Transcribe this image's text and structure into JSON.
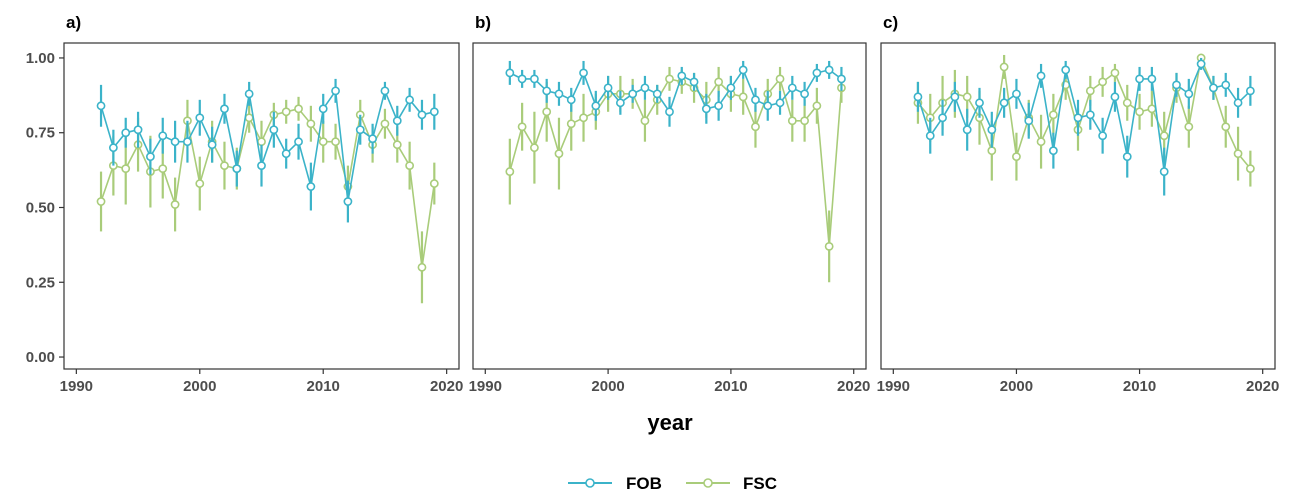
{
  "colors": {
    "FOB": "#3bb3c9",
    "FSC": "#a9cc7a"
  },
  "xlabel": "year",
  "legend": {
    "position": "bottom",
    "items": [
      "FOB",
      "FSC"
    ]
  },
  "chart_data": [
    {
      "panel": "a)",
      "type": "line",
      "x_ticks": [
        "1990",
        "2000",
        "2010",
        "2020"
      ],
      "y_ticks": [
        "0.00",
        "0.25",
        "0.50",
        "0.75",
        "1.00"
      ],
      "xlim": [
        1989,
        2021
      ],
      "ylim": [
        -0.04,
        1.05
      ],
      "grid": false,
      "x": [
        1992,
        1993,
        1994,
        1995,
        1996,
        1997,
        1998,
        1999,
        2000,
        2001,
        2002,
        2003,
        2004,
        2005,
        2006,
        2007,
        2008,
        2009,
        2010,
        2011,
        2012,
        2013,
        2014,
        2015,
        2016,
        2017,
        2018,
        2019
      ],
      "series": [
        {
          "name": "FOB",
          "values": [
            0.84,
            0.7,
            0.75,
            0.76,
            0.67,
            0.74,
            0.72,
            0.72,
            0.8,
            0.71,
            0.83,
            0.63,
            0.88,
            0.64,
            0.76,
            0.68,
            0.72,
            0.57,
            0.83,
            0.89,
            0.52,
            0.76,
            0.73,
            0.89,
            0.79,
            0.86,
            0.81,
            0.82
          ],
          "err": [
            0.07,
            0.06,
            0.05,
            0.06,
            0.06,
            0.06,
            0.07,
            0.07,
            0.06,
            0.06,
            0.05,
            0.06,
            0.04,
            0.07,
            0.06,
            0.05,
            0.06,
            0.08,
            0.05,
            0.04,
            0.07,
            0.05,
            0.05,
            0.03,
            0.05,
            0.04,
            0.05,
            0.06
          ]
        },
        {
          "name": "FSC",
          "values": [
            0.52,
            0.64,
            0.63,
            0.71,
            0.62,
            0.63,
            0.51,
            0.79,
            0.58,
            0.72,
            0.64,
            0.63,
            0.8,
            0.72,
            0.81,
            0.82,
            0.83,
            0.78,
            0.72,
            0.72,
            0.57,
            0.81,
            0.71,
            0.78,
            0.71,
            0.64,
            0.3,
            0.58
          ],
          "err": [
            0.1,
            0.1,
            0.12,
            0.09,
            0.12,
            0.1,
            0.09,
            0.07,
            0.09,
            0.07,
            0.08,
            0.07,
            0.05,
            0.07,
            0.04,
            0.04,
            0.04,
            0.06,
            0.07,
            0.06,
            0.07,
            0.05,
            0.06,
            0.05,
            0.06,
            0.08,
            0.12,
            0.07
          ]
        }
      ]
    },
    {
      "panel": "b)",
      "type": "line",
      "x_ticks": [
        "1990",
        "2000",
        "2010",
        "2020"
      ],
      "xlim": [
        1989,
        2021
      ],
      "ylim": [
        -0.04,
        1.05
      ],
      "grid": false,
      "x": [
        1992,
        1993,
        1994,
        1995,
        1996,
        1997,
        1998,
        1999,
        2000,
        2001,
        2002,
        2003,
        2004,
        2005,
        2006,
        2007,
        2008,
        2009,
        2010,
        2011,
        2012,
        2013,
        2014,
        2015,
        2016,
        2017,
        2018,
        2019
      ],
      "series": [
        {
          "name": "FOB",
          "values": [
            0.95,
            0.93,
            0.93,
            0.89,
            0.88,
            0.86,
            0.95,
            0.84,
            0.9,
            0.85,
            0.88,
            0.9,
            0.88,
            0.82,
            0.94,
            0.92,
            0.83,
            0.84,
            0.9,
            0.96,
            0.86,
            0.84,
            0.85,
            0.9,
            0.88,
            0.95,
            0.96,
            0.93
          ],
          "err": [
            0.04,
            0.03,
            0.03,
            0.04,
            0.04,
            0.04,
            0.04,
            0.05,
            0.04,
            0.04,
            0.03,
            0.04,
            0.03,
            0.05,
            0.03,
            0.03,
            0.05,
            0.05,
            0.04,
            0.03,
            0.04,
            0.05,
            0.04,
            0.04,
            0.04,
            0.03,
            0.03,
            0.04
          ]
        },
        {
          "name": "FSC",
          "values": [
            0.62,
            0.77,
            0.7,
            0.82,
            0.68,
            0.78,
            0.8,
            0.82,
            0.88,
            0.88,
            0.88,
            0.79,
            0.86,
            0.93,
            0.92,
            0.9,
            0.86,
            0.92,
            0.88,
            0.87,
            0.77,
            0.88,
            0.93,
            0.79,
            0.79,
            0.84,
            0.37,
            0.9
          ],
          "err": [
            0.11,
            0.08,
            0.12,
            0.1,
            0.12,
            0.09,
            0.08,
            0.06,
            0.06,
            0.06,
            0.05,
            0.07,
            0.05,
            0.04,
            0.04,
            0.05,
            0.06,
            0.05,
            0.06,
            0.06,
            0.07,
            0.05,
            0.04,
            0.07,
            0.07,
            0.06,
            0.12,
            0.05
          ]
        }
      ]
    },
    {
      "panel": "c)",
      "type": "line",
      "x_ticks": [
        "1990",
        "2000",
        "2010",
        "2020"
      ],
      "xlim": [
        1989,
        2021
      ],
      "ylim": [
        -0.04,
        1.05
      ],
      "grid": false,
      "x": [
        1992,
        1993,
        1994,
        1995,
        1996,
        1997,
        1998,
        1999,
        2000,
        2001,
        2002,
        2003,
        2004,
        2005,
        2006,
        2007,
        2008,
        2009,
        2010,
        2011,
        2012,
        2013,
        2014,
        2015,
        2016,
        2017,
        2018,
        2019
      ],
      "series": [
        {
          "name": "FOB",
          "values": [
            0.87,
            0.74,
            0.8,
            0.87,
            0.76,
            0.85,
            0.76,
            0.85,
            0.88,
            0.79,
            0.94,
            0.69,
            0.96,
            0.8,
            0.81,
            0.74,
            0.87,
            0.67,
            0.93,
            0.93,
            0.62,
            0.91,
            0.88,
            0.98,
            0.9,
            0.91,
            0.85,
            0.89
          ],
          "err": [
            0.05,
            0.06,
            0.06,
            0.05,
            0.07,
            0.05,
            0.06,
            0.05,
            0.05,
            0.06,
            0.04,
            0.06,
            0.03,
            0.06,
            0.05,
            0.06,
            0.05,
            0.07,
            0.04,
            0.04,
            0.08,
            0.04,
            0.05,
            0.02,
            0.04,
            0.04,
            0.05,
            0.05
          ]
        },
        {
          "name": "FSC",
          "values": [
            0.85,
            0.8,
            0.85,
            0.88,
            0.87,
            0.8,
            0.69,
            0.97,
            0.67,
            0.8,
            0.72,
            0.81,
            0.91,
            0.76,
            0.89,
            0.92,
            0.95,
            0.85,
            0.82,
            0.83,
            0.74,
            0.9,
            0.77,
            1.0,
            0.9,
            0.77,
            0.68,
            0.63
          ],
          "err": [
            0.07,
            0.08,
            0.09,
            0.08,
            0.07,
            0.09,
            0.1,
            0.04,
            0.08,
            0.06,
            0.09,
            0.07,
            0.05,
            0.07,
            0.05,
            0.05,
            0.03,
            0.06,
            0.06,
            0.06,
            0.08,
            0.05,
            0.07,
            0.01,
            0.04,
            0.07,
            0.09,
            0.06
          ]
        }
      ]
    }
  ]
}
